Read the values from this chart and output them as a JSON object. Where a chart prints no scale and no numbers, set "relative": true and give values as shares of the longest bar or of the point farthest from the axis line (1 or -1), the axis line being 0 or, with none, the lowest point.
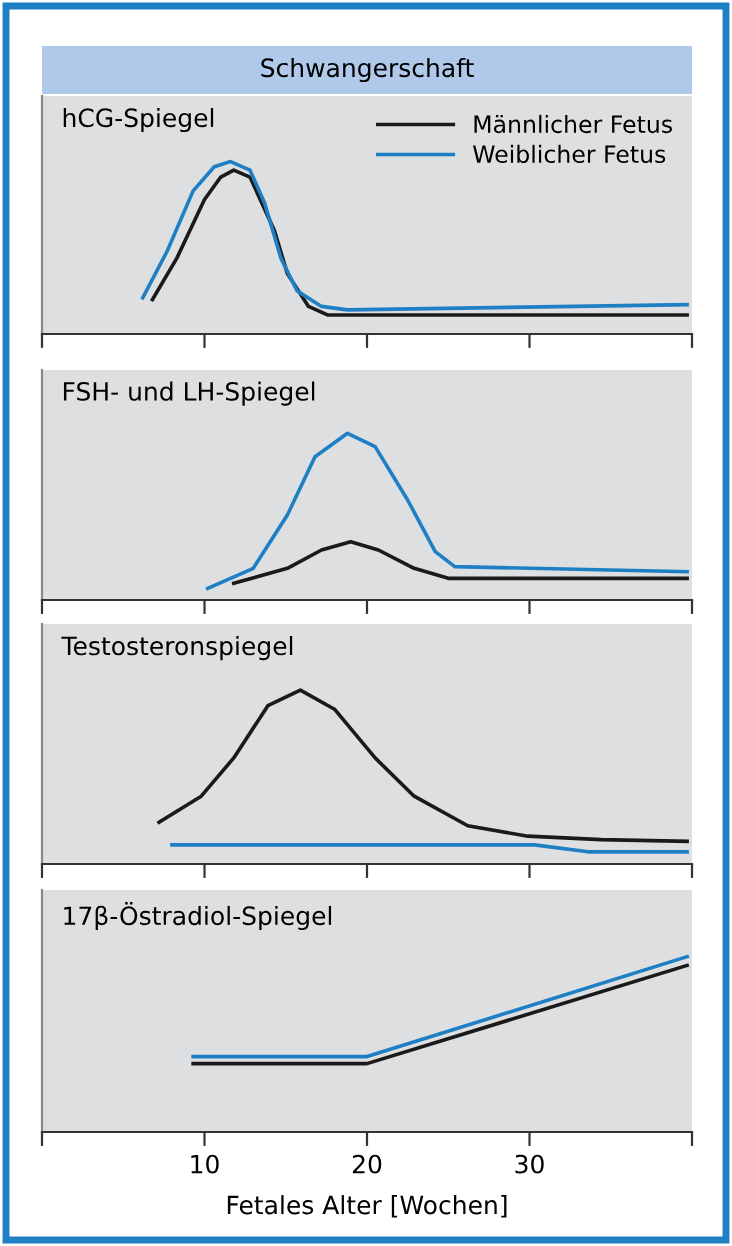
{
  "chart_data": [
    {
      "type": "line",
      "title": "hCG-Spiegel",
      "annotations": [
        "Schwangerschaft"
      ],
      "relative": true,
      "xlim": [
        0,
        40
      ],
      "xticks": [
        {
          "value": 0,
          "label": null
        },
        {
          "value": 10,
          "label": null
        },
        {
          "value": 20,
          "label": null
        },
        {
          "value": 30,
          "label": null
        },
        {
          "value": 40,
          "label": null
        }
      ],
      "tick_labels": false,
      "legend": "top right",
      "grid": false,
      "marker": "none",
      "line_style": "solid",
      "series": [
        {
          "name": "Männlicher Fetus",
          "color": "#1a1a1a",
          "x": [
            6.8,
            8.3,
            10.0,
            11.0,
            11.8,
            12.8,
            14.3,
            15.1,
            16.4,
            17.6,
            39.7
          ],
          "values": [
            0.2,
            0.44,
            0.78,
            0.91,
            0.95,
            0.91,
            0.6,
            0.35,
            0.16,
            0.11,
            0.11
          ]
        },
        {
          "name": "Weiblicher Fetus",
          "color": "#1f7fc4",
          "x": [
            6.2,
            7.7,
            9.3,
            10.6,
            11.6,
            12.8,
            13.7,
            14.7,
            15.7,
            17.2,
            18.8,
            39.7
          ],
          "values": [
            0.21,
            0.48,
            0.83,
            0.97,
            1.0,
            0.95,
            0.76,
            0.44,
            0.25,
            0.16,
            0.14,
            0.17
          ]
        }
      ]
    },
    {
      "type": "line",
      "title": "FSH- und LH-Spiegel",
      "relative": true,
      "xlim": [
        0,
        40
      ],
      "xticks": [
        {
          "value": 0,
          "label": null
        },
        {
          "value": 10,
          "label": null
        },
        {
          "value": 20,
          "label": null
        },
        {
          "value": 30,
          "label": null
        },
        {
          "value": 40,
          "label": null
        }
      ],
      "tick_labels": false,
      "grid": false,
      "marker": "none",
      "line_style": "solid",
      "series": [
        {
          "color": "#1a1a1a",
          "x": [
            11.8,
            15.1,
            17.2,
            19.0,
            20.7,
            22.9,
            25.0,
            39.7
          ],
          "values": [
            0.1,
            0.19,
            0.3,
            0.35,
            0.3,
            0.19,
            0.13,
            0.13
          ]
        },
        {
          "color": "#1f7fc4",
          "x": [
            10.2,
            13.0,
            15.1,
            16.8,
            18.8,
            20.5,
            22.5,
            24.2,
            25.4,
            39.7
          ],
          "values": [
            0.07,
            0.19,
            0.51,
            0.86,
            1.0,
            0.92,
            0.6,
            0.29,
            0.2,
            0.17
          ]
        }
      ]
    },
    {
      "type": "line",
      "title": "Testosteronspiegel",
      "relative": true,
      "xlim": [
        0,
        40
      ],
      "xticks": [
        {
          "value": 0,
          "label": null
        },
        {
          "value": 10,
          "label": null
        },
        {
          "value": 20,
          "label": null
        },
        {
          "value": 30,
          "label": null
        },
        {
          "value": 40,
          "label": null
        }
      ],
      "tick_labels": false,
      "grid": false,
      "marker": "none",
      "line_style": "solid",
      "series": [
        {
          "color": "#1a1a1a",
          "x": [
            7.2,
            9.8,
            11.8,
            13.9,
            15.9,
            18.0,
            20.5,
            22.9,
            26.2,
            29.9,
            34.4,
            39.7
          ],
          "values": [
            0.24,
            0.39,
            0.61,
            0.91,
            1.0,
            0.89,
            0.61,
            0.39,
            0.22,
            0.16,
            0.14,
            0.13
          ]
        },
        {
          "color": "#1f7fc4",
          "x": [
            8.0,
            30.3,
            33.6,
            39.7
          ],
          "values": [
            0.11,
            0.11,
            0.07,
            0.07
          ]
        }
      ]
    },
    {
      "type": "line",
      "title": "17β-Östradiol-Spiegel",
      "xlabel": "Fetales Alter [Wochen]",
      "relative": true,
      "xlim": [
        0,
        40
      ],
      "xticks": [
        {
          "value": 0,
          "label": null
        },
        10,
        20,
        30,
        {
          "value": 40,
          "label": null
        }
      ],
      "tick_labels": "x",
      "grid": false,
      "marker": "none",
      "line_style": "solid",
      "series": [
        {
          "color": "#1a1a1a",
          "x": [
            9.3,
            20.0,
            39.7
          ],
          "values": [
            0.39,
            0.39,
            0.95
          ]
        },
        {
          "color": "#1f7fc4",
          "x": [
            9.3,
            20.0,
            39.7
          ],
          "values": [
            0.43,
            0.43,
            1.0
          ]
        }
      ]
    }
  ]
}
